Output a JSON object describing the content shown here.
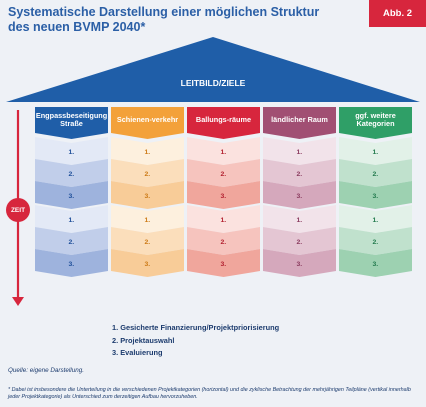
{
  "title": "Systematische Darstellung einer möglichen Struktur des neuen BVMP 2040*",
  "badge": "Abb. 2",
  "roof_label": "LEITBILD/ZIELE",
  "time_label": "ZEIT",
  "columns": [
    {
      "label": "Engpassbeseitigung Straße",
      "header_color": "#1f5ea8",
      "light": "#e3e9f6",
      "dark": "#9eb3dd",
      "num_color": "#1f4f99"
    },
    {
      "label": "Schienen-verkehr",
      "header_color": "#f3a13a",
      "light": "#fdf0de",
      "dark": "#f8cc98",
      "num_color": "#cc7a16"
    },
    {
      "label": "Ballungs-räume",
      "header_color": "#d7263d",
      "light": "#fbe2df",
      "dark": "#f0a69c",
      "num_color": "#b2202f"
    },
    {
      "label": "ländlicher Raum",
      "header_color": "#a14f73",
      "light": "#f2e3ea",
      "dark": "#d5a8bc",
      "num_color": "#8a3a5e"
    },
    {
      "label": "ggf. weitere Kategorien",
      "header_color": "#2f9f67",
      "light": "#e2f1e8",
      "dark": "#9dd1b1",
      "num_color": "#227a4d"
    }
  ],
  "stage_numbers": [
    "1.",
    "2.",
    "3."
  ],
  "legend": [
    "1. Gesicherte Finanzierung/Projektpriorisierung",
    "2. Projektauswahl",
    "3. Evaluierung"
  ],
  "source": "Quelle: eigene Darstellung.",
  "footnote": "* Dabei ist insbesondere die Unterteilung in die verschiedenen Projektkategorien (horizontal) und die zyklische Betrachtung der mehrjährigen Teilpläne (vertikal innerhalb jeder Projektkategorie) als Unterschied zum derzeitigen Aufbau hervorzuheben."
}
